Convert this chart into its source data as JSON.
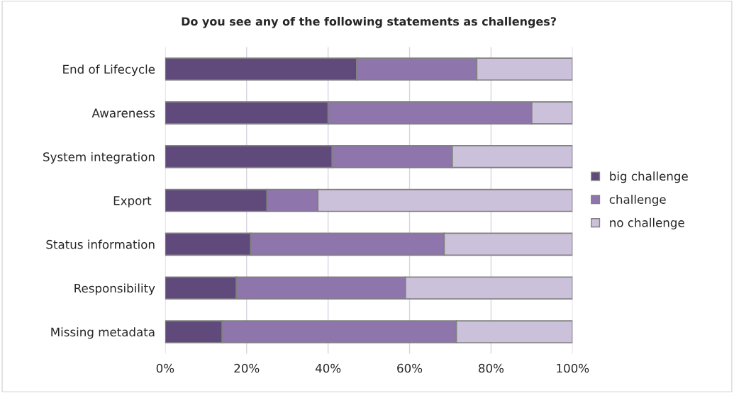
{
  "chart_data": {
    "type": "bar",
    "orientation": "horizontal",
    "stacked": true,
    "title": "Do you see any of the following statements as challenges?",
    "categories": [
      "End of Lifecycle",
      "Awareness",
      "System integration",
      "Export ",
      "Status information",
      "Responsibility",
      "Missing metadata"
    ],
    "series": [
      {
        "name": "big challenge",
        "color": "#604a7b",
        "values": [
          47,
          40,
          41,
          25,
          21,
          17.5,
          14
        ]
      },
      {
        "name": "challenge",
        "color": "#8e75ab",
        "values": [
          29.5,
          50,
          29.5,
          12.5,
          47.5,
          41.5,
          57.5
        ]
      },
      {
        "name": "no challenge",
        "color": "#ccc1da",
        "values": [
          23.5,
          10,
          29.5,
          62.5,
          31.5,
          41,
          28.5
        ]
      }
    ],
    "xlim": [
      0,
      100
    ],
    "xticks": [
      {
        "value": 0,
        "label": "0%"
      },
      {
        "value": 20,
        "label": "20%"
      },
      {
        "value": 40,
        "label": "40%"
      },
      {
        "value": 60,
        "label": "60%"
      },
      {
        "value": 80,
        "label": "80%"
      },
      {
        "value": 100,
        "label": "100%"
      }
    ],
    "grid": "x",
    "legend": "right"
  }
}
